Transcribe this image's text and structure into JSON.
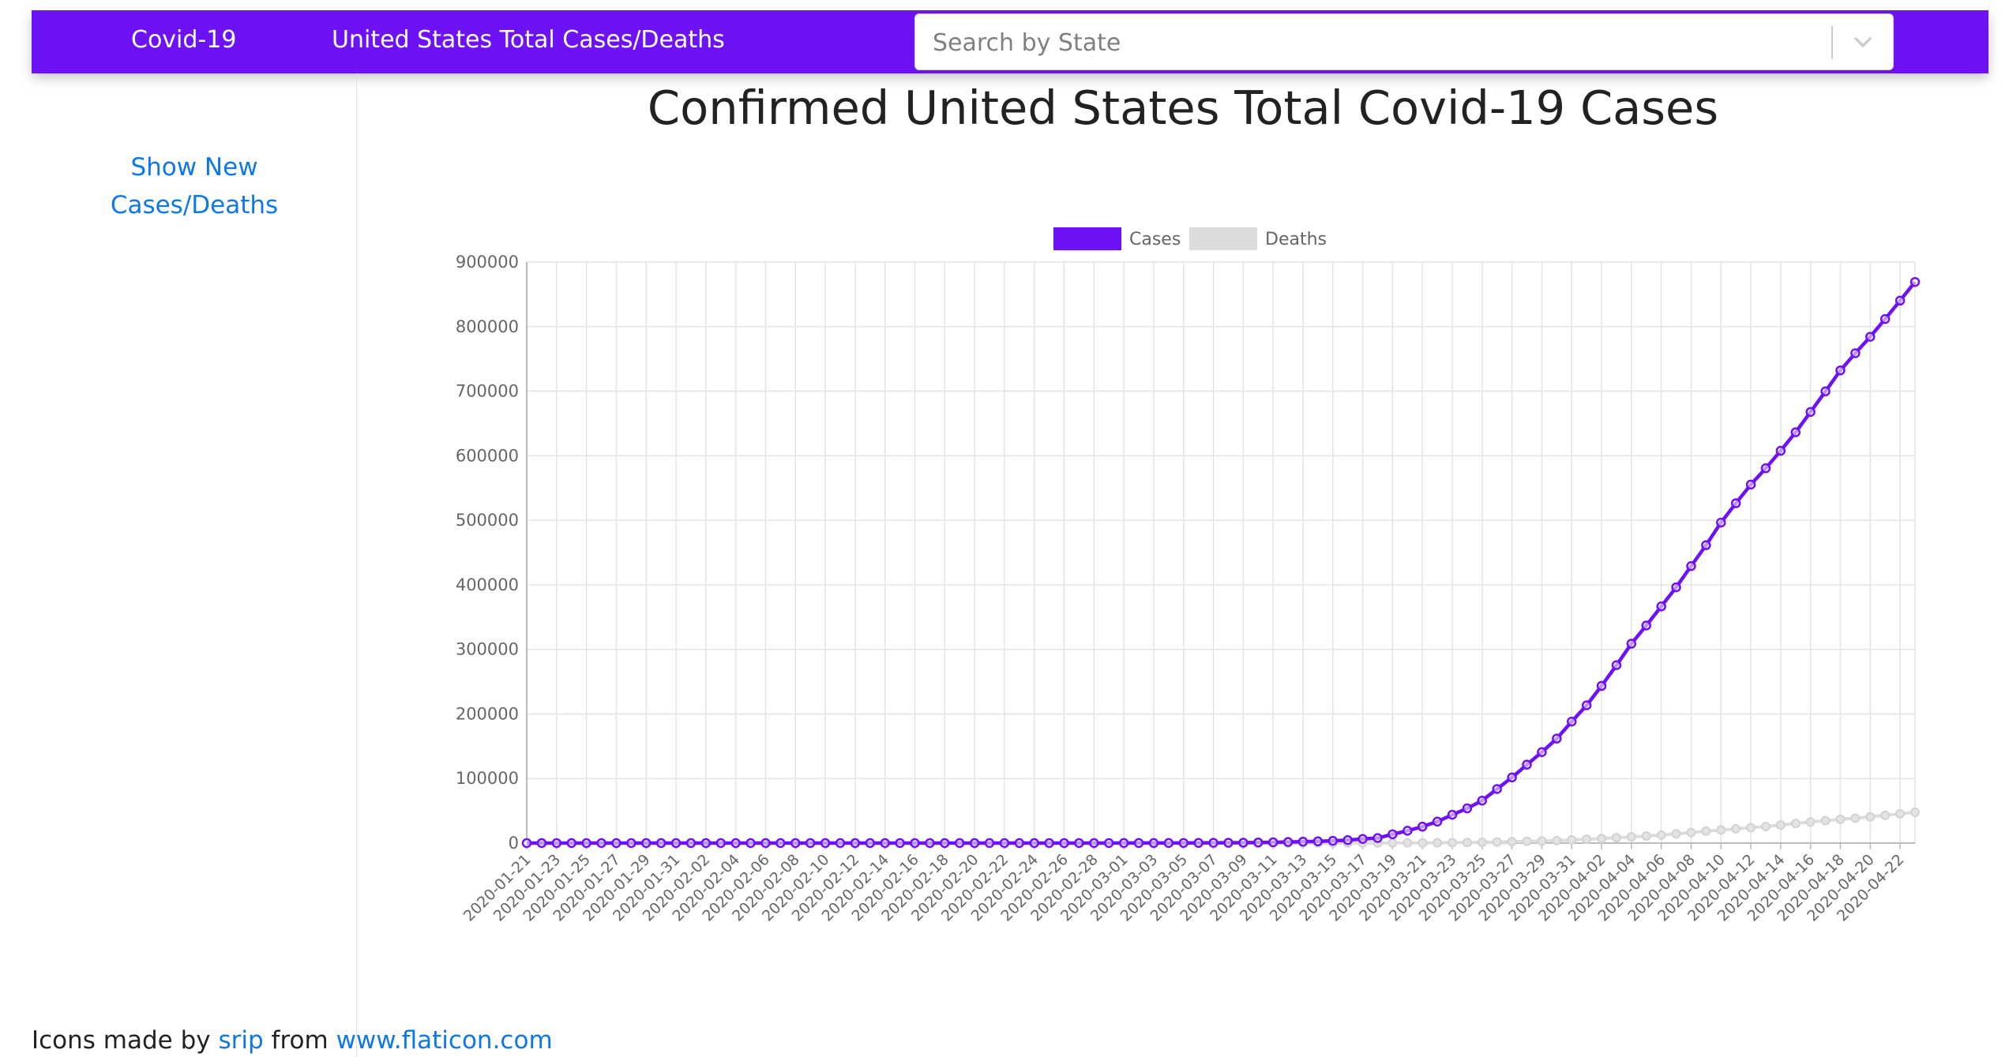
{
  "nav": {
    "brand": "Covid-19",
    "link": "United States Total Cases/Deaths",
    "search_placeholder": "Search by State"
  },
  "sidebar": {
    "link_line1": "Show New",
    "link_line2": "Cases/Deaths"
  },
  "page_title": "Confirmed United States Total Covid-19 Cases",
  "footer": {
    "prefix": "Icons made by",
    "author": "srip",
    "middle": "from",
    "site": "www.flaticon.com"
  },
  "colors": {
    "nav": "#6d12f5",
    "cases": "#6d12f5",
    "deaths": "#dcdcdc",
    "link": "#0f78e8"
  },
  "chart_data": {
    "type": "line",
    "title": "",
    "legend_position": "top",
    "grid": true,
    "ylim": [
      0,
      900000
    ],
    "y_ticks": [
      0,
      100000,
      200000,
      300000,
      400000,
      500000,
      600000,
      700000,
      800000,
      900000
    ],
    "x_start": "2020-01-21",
    "x_end": "2020-04-23",
    "x_tick_labels": [
      "2020-01-21",
      "2020-01-23",
      "2020-01-25",
      "2020-01-27",
      "2020-01-29",
      "2020-01-31",
      "2020-02-02",
      "2020-02-04",
      "2020-02-06",
      "2020-02-08",
      "2020-02-10",
      "2020-02-12",
      "2020-02-14",
      "2020-02-16",
      "2020-02-18",
      "2020-02-20",
      "2020-02-22",
      "2020-02-24",
      "2020-02-26",
      "2020-02-28",
      "2020-03-01",
      "2020-03-03",
      "2020-03-05",
      "2020-03-07",
      "2020-03-09",
      "2020-03-11",
      "2020-03-13",
      "2020-03-15",
      "2020-03-17",
      "2020-03-19",
      "2020-03-21",
      "2020-03-23",
      "2020-03-25",
      "2020-03-27",
      "2020-03-29",
      "2020-03-31",
      "2020-04-02",
      "2020-04-04",
      "2020-04-06",
      "2020-04-08",
      "2020-04-10",
      "2020-04-12",
      "2020-04-14",
      "2020-04-16",
      "2020-04-18",
      "2020-04-20",
      "2020-04-22"
    ],
    "series": [
      {
        "name": "Cases",
        "color": "#6d12f5",
        "values": [
          1,
          1,
          1,
          2,
          5,
          5,
          5,
          5,
          6,
          7,
          8,
          11,
          11,
          12,
          12,
          12,
          12,
          12,
          12,
          13,
          13,
          13,
          13,
          13,
          13,
          13,
          14,
          14,
          15,
          15,
          15,
          15,
          15,
          15,
          16,
          16,
          24,
          30,
          53,
          73,
          80,
          98,
          118,
          149,
          217,
          262,
          402,
          518,
          583,
          959,
          1281,
          1663,
          2179,
          2727,
          3499,
          4632,
          6421,
          7783,
          13677,
          19100,
          25489,
          33276,
          43847,
          53740,
          65778,
          83836,
          101657,
          121465,
          140909,
          161831,
          188172,
          213372,
          243453,
          275586,
          308850,
          337072,
          366667,
          396223,
          429052,
          461437,
          496535,
          526396,
          555313,
          580619,
          607670,
          636350,
          667801,
          699706,
          732197,
          758809,
          784326,
          811865,
          840351,
          869170
        ],
        "markers": true
      },
      {
        "name": "Deaths",
        "color": "#dcdcdc",
        "values": [
          0,
          0,
          0,
          0,
          0,
          0,
          0,
          0,
          0,
          0,
          0,
          0,
          0,
          0,
          0,
          0,
          0,
          0,
          0,
          0,
          0,
          0,
          0,
          0,
          0,
          0,
          0,
          0,
          0,
          0,
          0,
          0,
          0,
          0,
          0,
          0,
          0,
          0,
          0,
          1,
          2,
          6,
          9,
          11,
          12,
          15,
          19,
          22,
          26,
          30,
          38,
          41,
          48,
          58,
          73,
          95,
          121,
          171,
          239,
          309,
          374,
          509,
          689,
          957,
          1260,
          1614,
          2110,
          2754,
          3251,
          3957,
          4916,
          5925,
          7095,
          8403,
          9618,
          10842,
          12356,
          14390,
          16381,
          18471,
          20336,
          22090,
          23803,
          25706,
          27934,
          30475,
          32720,
          34752,
          36790,
          38589,
          40724,
          42949,
          45346,
          47773
        ],
        "markers": true
      }
    ]
  }
}
